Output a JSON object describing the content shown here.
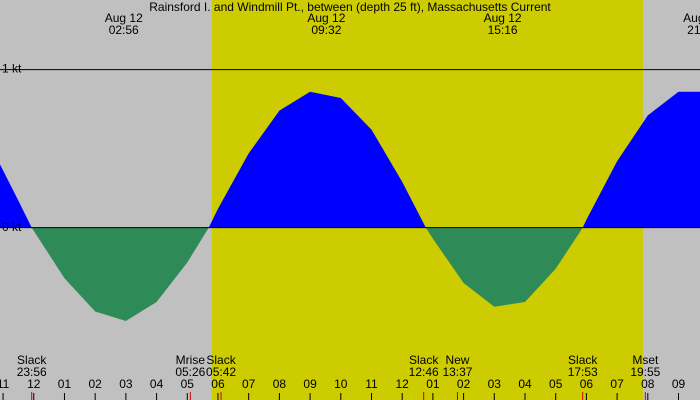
{
  "chart_data": {
    "type": "area",
    "title": "Rainsford I. and Windmill Pt., between (depth 25 ft), Massachusetts Current",
    "x": [
      -1.1,
      -0.5,
      -0.067,
      0,
      1,
      2,
      3,
      4,
      5,
      5.7,
      6,
      7,
      8,
      9,
      10,
      11,
      12,
      12.77,
      13,
      14,
      15,
      16,
      17,
      17.88,
      18,
      19,
      20,
      21,
      21.7
    ],
    "values": [
      0.4,
      0.17,
      0,
      -0.02,
      -0.32,
      -0.53,
      -0.59,
      -0.47,
      -0.22,
      0,
      0.12,
      0.47,
      0.74,
      0.86,
      0.82,
      0.62,
      0.29,
      0,
      -0.07,
      -0.35,
      -0.5,
      -0.47,
      -0.26,
      0,
      0.05,
      0.42,
      0.71,
      0.86,
      0.86
    ],
    "flood_color": "#0000ff",
    "ebb_color": "#2e8b57",
    "night_color": "#c0c0c0",
    "day_color": "#cccc00",
    "daylight": [
      5.8,
      19.84
    ],
    "xlim": [
      -1.1,
      21.7
    ],
    "ylim": [
      -1.09,
      1.44
    ],
    "yticks": [
      {
        "value": 1,
        "label": "1 kt"
      },
      {
        "value": 0,
        "label": "0 kt"
      }
    ],
    "xticks": [
      {
        "value": -1,
        "label": "11"
      },
      {
        "value": 0,
        "label": "12"
      },
      {
        "value": 1,
        "label": "01"
      },
      {
        "value": 2,
        "label": "02"
      },
      {
        "value": 3,
        "label": "03"
      },
      {
        "value": 4,
        "label": "04"
      },
      {
        "value": 5,
        "label": "05"
      },
      {
        "value": 6,
        "label": "06"
      },
      {
        "value": 7,
        "label": "07"
      },
      {
        "value": 8,
        "label": "08"
      },
      {
        "value": 9,
        "label": "09"
      },
      {
        "value": 10,
        "label": "10"
      },
      {
        "value": 11,
        "label": "11"
      },
      {
        "value": 12,
        "label": "12"
      },
      {
        "value": 13,
        "label": "01"
      },
      {
        "value": 14,
        "label": "02"
      },
      {
        "value": 15,
        "label": "03"
      },
      {
        "value": 16,
        "label": "04"
      },
      {
        "value": 17,
        "label": "05"
      },
      {
        "value": 18,
        "label": "06"
      },
      {
        "value": 19,
        "label": "07"
      },
      {
        "value": 20,
        "label": "08"
      },
      {
        "value": 21,
        "label": "09"
      }
    ],
    "peaks": [
      {
        "date": "Aug 12",
        "time": "02:56",
        "x": 2.93
      },
      {
        "date": "Aug 12",
        "time": "09:32",
        "x": 9.53
      },
      {
        "date": "Aug 12",
        "time": "15:16",
        "x": 15.27
      },
      {
        "date": "Aug",
        "time": "21",
        "x": 21.5
      }
    ],
    "events": [
      {
        "name": "Slack",
        "time": "23:56",
        "x": -0.067
      },
      {
        "name": "Mrise",
        "time": "05:26",
        "x": 5.1
      },
      {
        "name": "Slack",
        "time": "05:42",
        "x": 6.1
      },
      {
        "name": "Slack",
        "time": "12:46",
        "x": 12.7
      },
      {
        "name": "New",
        "time": "13:37",
        "x": 13.8
      },
      {
        "name": "Slack",
        "time": "17:53",
        "x": 17.88
      },
      {
        "name": "Mset",
        "time": "19:55",
        "x": 19.92
      }
    ]
  }
}
